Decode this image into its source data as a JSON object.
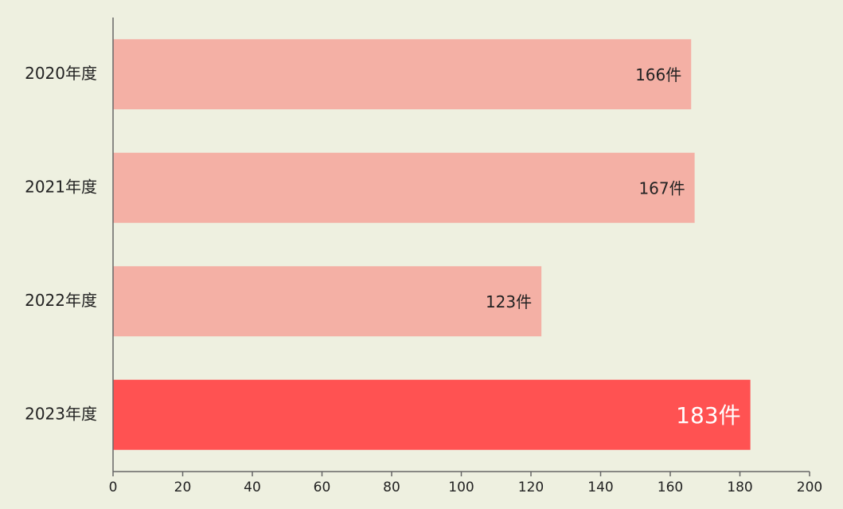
{
  "chart_data": {
    "type": "bar",
    "orientation": "horizontal",
    "categories": [
      "2020年度",
      "2021年度",
      "2022年度",
      "2023年度"
    ],
    "values": [
      166,
      167,
      123,
      183
    ],
    "value_labels": [
      "166件",
      "167件",
      "123件",
      "183件"
    ],
    "colors": [
      "#f4b0a5",
      "#f4b0a5",
      "#f4b0a5",
      "#ff5252"
    ],
    "xlim": [
      0,
      200
    ],
    "xticks": [
      0,
      20,
      40,
      60,
      80,
      100,
      120,
      140,
      160,
      180,
      200
    ]
  }
}
